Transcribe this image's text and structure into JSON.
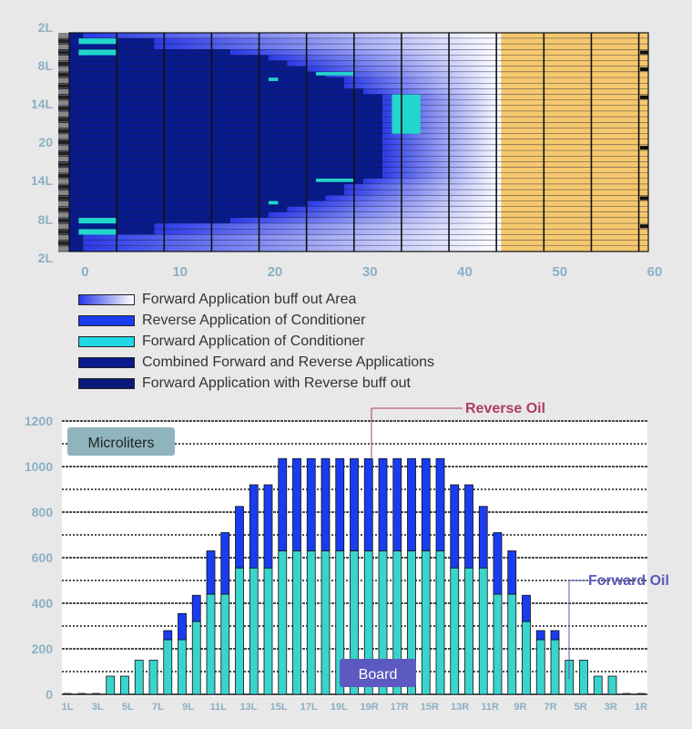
{
  "colors": {
    "background": "#e8e8e8",
    "forward_conditioner": "#22d6cc",
    "reverse_conditioner": "#1a3cf0",
    "combined": "#081a8c",
    "forward_reverse_buff": "#0a1a7a",
    "buff_out_start": "#3a46e0",
    "buff_out_end": "#ffffff",
    "board_area": "#f5c86e",
    "tick_text": "#8bb0c4",
    "reverse_oil_label": "#b03a6a",
    "forward_oil_label": "#5a5ab8"
  },
  "legend": [
    {
      "label": "Forward Application buff out Area",
      "swatch": "gradient"
    },
    {
      "label": "Reverse Application of Conditioner",
      "swatch": "#1a3cf0"
    },
    {
      "label": "Forward Application of Conditioner",
      "swatch": "#22d6cc"
    },
    {
      "label": "Combined Forward and Reverse Applications",
      "swatch": "#081a8c"
    },
    {
      "label": "Forward Application with Reverse buff out",
      "swatch": "#0a1a7a"
    }
  ],
  "chart_data": [
    {
      "type": "heatmap",
      "xticks": [
        "0",
        "10",
        "20",
        "30",
        "40",
        "50",
        "60"
      ],
      "yticks": [
        "2L",
        "8L",
        "14L",
        "20",
        "14L",
        "8L",
        "2L"
      ],
      "xlim": [
        -1,
        60
      ],
      "board_area_start": 44.5,
      "row_count": 39,
      "dark_core_extent": [
        0.5,
        8,
        8,
        16,
        20,
        22,
        24,
        26,
        28,
        28,
        30,
        32,
        32,
        32,
        32,
        32,
        32,
        32,
        32,
        32,
        32,
        32,
        32,
        32,
        32,
        32,
        30,
        28,
        28,
        26,
        24,
        22,
        20,
        16,
        8,
        8,
        0.5,
        0.5,
        0.5
      ]
    },
    {
      "type": "bar",
      "title_box": "Microliters",
      "bottom_box": "Board",
      "annotations": [
        "Reverse Oil",
        "Forward Oil"
      ],
      "ylim": [
        0,
        1200
      ],
      "yticks": [
        "0",
        "200",
        "400",
        "600",
        "800",
        "1000",
        "1200"
      ],
      "xtick_labels": [
        "1L",
        "3L",
        "5L",
        "7L",
        "9L",
        "11L",
        "13L",
        "15L",
        "17L",
        "19L",
        "19R",
        "17R",
        "15R",
        "13R",
        "11R",
        "9R",
        "7R",
        "5R",
        "3R",
        "1R"
      ],
      "series": [
        {
          "name": "Forward Oil",
          "values": [
            0,
            0,
            0,
            80,
            80,
            150,
            150,
            240,
            240,
            320,
            440,
            440,
            555,
            555,
            555,
            630,
            630,
            630,
            630,
            630,
            630,
            630,
            630,
            630,
            630,
            630,
            630,
            555,
            555,
            555,
            440,
            440,
            320,
            240,
            240,
            150,
            150,
            80,
            80,
            0,
            0
          ]
        },
        {
          "name": "Reverse Oil",
          "values": [
            0,
            0,
            0,
            0,
            0,
            0,
            0,
            40,
            115,
            115,
            190,
            270,
            270,
            365,
            365,
            405,
            405,
            405,
            405,
            405,
            405,
            405,
            405,
            405,
            405,
            405,
            405,
            365,
            365,
            270,
            270,
            190,
            115,
            40,
            40,
            0,
            0,
            0,
            0,
            0,
            0
          ]
        }
      ]
    }
  ]
}
